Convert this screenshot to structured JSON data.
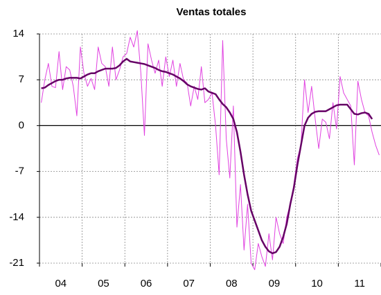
{
  "chart_data": {
    "type": "line",
    "title": "Ventas totales",
    "categories": [
      null,
      null,
      null,
      null,
      null,
      null,
      "04",
      null,
      null,
      null,
      null,
      null,
      null,
      null,
      null,
      null,
      null,
      null,
      "05",
      null,
      null,
      null,
      null,
      null,
      null,
      null,
      null,
      null,
      null,
      null,
      "06",
      null,
      null,
      null,
      null,
      null,
      null,
      null,
      null,
      null,
      null,
      null,
      "07",
      null,
      null,
      null,
      null,
      null,
      null,
      null,
      null,
      null,
      null,
      null,
      "08",
      null,
      null,
      null,
      null,
      null,
      null,
      null,
      null,
      null,
      null,
      null,
      "09",
      null,
      null,
      null,
      null,
      null,
      null,
      null,
      null,
      null,
      null,
      null,
      "10",
      null,
      null,
      null,
      null,
      null,
      null,
      null,
      null,
      null,
      null,
      null,
      "11",
      null,
      null,
      null,
      null,
      null
    ],
    "series": [
      {
        "color": "#e040e0",
        "width": 1,
        "values": [
          3.5,
          7,
          9.5,
          6,
          5.8,
          11.3,
          5.5,
          9,
          8.5,
          6,
          1.5,
          12,
          8,
          6,
          7.2,
          5.5,
          12,
          9.5,
          9,
          6,
          12,
          7,
          8.5,
          10.5,
          11,
          13.5,
          12,
          14.5,
          8,
          -1.5,
          12.5,
          10,
          8,
          10,
          6,
          10.5,
          7.5,
          10,
          6,
          9.5,
          7,
          6.5,
          3,
          6,
          4,
          9,
          3.5,
          4,
          5,
          0,
          -7.5,
          13,
          -2,
          -8,
          3,
          -15.5,
          -9,
          -19,
          -12,
          -21,
          -22,
          -18,
          -20,
          -21.5,
          -16.5,
          -20.5,
          -14,
          -16.5,
          -18,
          -14,
          -12,
          -9,
          -5,
          -3,
          7,
          2,
          6,
          1,
          -3.5,
          1,
          0.5,
          -2,
          3.5,
          -0.5,
          7.5,
          5,
          4,
          3,
          -6,
          6.8,
          4,
          2,
          1.5,
          -1,
          -3,
          -4.5
        ]
      },
      {
        "color": "#660066",
        "width": 2.5,
        "values": [
          5.7,
          5.8,
          6.2,
          6.5,
          6.8,
          7.0,
          7.0,
          7.2,
          7.3,
          7.3,
          7.3,
          7.2,
          7.5,
          7.8,
          8.0,
          8.0,
          8.3,
          8.5,
          8.7,
          8.7,
          8.7,
          8.8,
          9.2,
          9.8,
          10.2,
          9.8,
          9.7,
          9.6,
          9.5,
          9.4,
          9.2,
          9.0,
          8.8,
          8.5,
          8.3,
          8.2,
          8.0,
          7.8,
          7.5,
          7.2,
          6.8,
          6.3,
          6.0,
          5.8,
          5.6,
          5.5,
          5.7,
          5.2,
          5.0,
          4.8,
          4.0,
          3.3,
          2.8,
          2.0,
          1.0,
          -1,
          -4,
          -7.5,
          -10.5,
          -13,
          -14.5,
          -16,
          -17.5,
          -18.5,
          -19.2,
          -19.5,
          -19.3,
          -18.5,
          -17,
          -15,
          -12,
          -9.5,
          -6,
          -3,
          0,
          1.2,
          1.8,
          2.1,
          2.2,
          2.2,
          2.2,
          2.5,
          2.8,
          3.1,
          3.2,
          3.2,
          3.2,
          2.5,
          1.8,
          1.7,
          1.9,
          2.0,
          1.8,
          1.0,
          null,
          null
        ]
      }
    ],
    "ylim": [
      -21,
      14
    ],
    "yticks": [
      14,
      7,
      0,
      -7,
      -14,
      -21
    ],
    "grid": true
  }
}
